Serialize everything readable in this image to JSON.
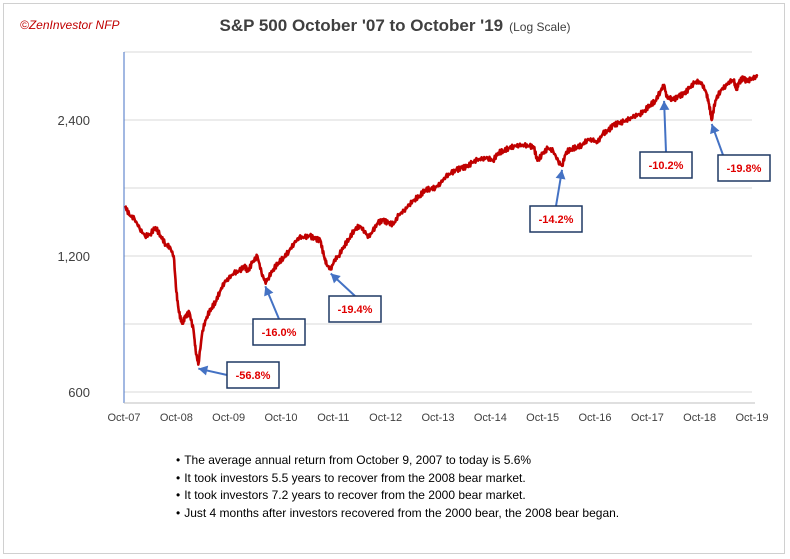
{
  "credit": "©ZenInvestor NFP",
  "title": "S&P 500  October '07 to October '19",
  "subtitle": "(Log Scale)",
  "notes": [
    "The average annual return from October 9, 2007 to today is 5.6%",
    "It took investors 5.5 years to recover from the 2008 bear market.",
    "It took investors 7.2 years to recover from the 2000 bear market.",
    "Just 4 months after investors recovered from the 2000 bear, the 2008 bear began."
  ],
  "colors": {
    "line": "#c00000",
    "grid": "#d9d9d9",
    "annotation_box": "#1f3864",
    "arrow": "#4472c4",
    "annotation_text": "#e00000"
  },
  "chart_data": {
    "type": "line",
    "title": "S&P 500  October '07 to October '19",
    "subtitle": "(Log Scale)",
    "y_scale": "log",
    "ylim": [
      600,
      3500
    ],
    "yticks": [
      600,
      1200,
      2400
    ],
    "ytick_labels": [
      "600",
      "1,200",
      "2,400"
    ],
    "xlim": [
      2007.77,
      2019.9
    ],
    "xticks": [
      2007.75,
      2008.75,
      2009.75,
      2010.75,
      2011.75,
      2012.75,
      2013.75,
      2014.75,
      2015.75,
      2016.75,
      2017.75,
      2018.75,
      2019.75
    ],
    "xtick_labels": [
      "Oct-07",
      "Oct-08",
      "Oct-09",
      "Oct-10",
      "Oct-11",
      "Oct-12",
      "Oct-13",
      "Oct-14",
      "Oct-15",
      "Oct-16",
      "Oct-17",
      "Oct-18",
      "Oct-19"
    ],
    "grid": true,
    "series": [
      {
        "x": [
          2007.77,
          2007.85,
          2007.95,
          2008.05,
          2008.15,
          2008.25,
          2008.35,
          2008.45,
          2008.55,
          2008.62,
          2008.7,
          2008.75,
          2008.8,
          2008.86,
          2008.92,
          2009.0,
          2009.08,
          2009.12,
          2009.17,
          2009.25,
          2009.33,
          2009.42,
          2009.5,
          2009.58,
          2009.67,
          2009.75,
          2009.85,
          2009.95,
          2010.05,
          2010.12,
          2010.2,
          2010.3,
          2010.38,
          2010.45,
          2010.5,
          2010.6,
          2010.7,
          2010.8,
          2010.9,
          2011.0,
          2011.1,
          2011.2,
          2011.3,
          2011.4,
          2011.5,
          2011.57,
          2011.62,
          2011.7,
          2011.78,
          2011.85,
          2011.95,
          2012.05,
          2012.15,
          2012.25,
          2012.35,
          2012.42,
          2012.5,
          2012.6,
          2012.7,
          2012.8,
          2012.9,
          2013.0,
          2013.1,
          2013.2,
          2013.3,
          2013.4,
          2013.5,
          2013.6,
          2013.7,
          2013.8,
          2013.9,
          2014.0,
          2014.1,
          2014.2,
          2014.3,
          2014.4,
          2014.5,
          2014.6,
          2014.7,
          2014.8,
          2014.9,
          2015.0,
          2015.1,
          2015.2,
          2015.3,
          2015.4,
          2015.5,
          2015.58,
          2015.65,
          2015.75,
          2015.85,
          2015.95,
          2016.05,
          2016.12,
          2016.2,
          2016.3,
          2016.4,
          2016.5,
          2016.6,
          2016.7,
          2016.8,
          2016.9,
          2017.0,
          2017.1,
          2017.2,
          2017.3,
          2017.4,
          2017.5,
          2017.6,
          2017.7,
          2017.8,
          2017.9,
          2018.0,
          2018.07,
          2018.12,
          2018.18,
          2018.25,
          2018.35,
          2018.45,
          2018.55,
          2018.65,
          2018.72,
          2018.8,
          2018.88,
          2018.93,
          2018.98,
          2019.05,
          2019.15,
          2019.25,
          2019.33,
          2019.4,
          2019.45,
          2019.5,
          2019.58,
          2019.65,
          2019.72,
          2019.8,
          2019.85
        ],
        "y": [
          1550,
          1480,
          1450,
          1380,
          1330,
          1340,
          1390,
          1330,
          1270,
          1260,
          1200,
          1000,
          900,
          850,
          880,
          900,
          820,
          740,
          690,
          820,
          880,
          920,
          950,
          1000,
          1050,
          1070,
          1100,
          1110,
          1140,
          1110,
          1160,
          1200,
          1100,
          1050,
          1070,
          1120,
          1160,
          1190,
          1230,
          1280,
          1320,
          1320,
          1330,
          1310,
          1300,
          1200,
          1150,
          1120,
          1180,
          1200,
          1260,
          1310,
          1370,
          1400,
          1360,
          1320,
          1360,
          1420,
          1440,
          1420,
          1410,
          1480,
          1510,
          1560,
          1600,
          1630,
          1680,
          1690,
          1700,
          1740,
          1800,
          1830,
          1860,
          1880,
          1890,
          1930,
          1960,
          1970,
          1980,
          1950,
          2030,
          2050,
          2080,
          2100,
          2110,
          2110,
          2100,
          2090,
          1950,
          2020,
          2080,
          2050,
          1940,
          1900,
          2040,
          2070,
          2090,
          2110,
          2170,
          2170,
          2140,
          2240,
          2270,
          2340,
          2360,
          2380,
          2410,
          2450,
          2470,
          2520,
          2590,
          2640,
          2780,
          2870,
          2700,
          2680,
          2660,
          2710,
          2740,
          2820,
          2900,
          2920,
          2880,
          2750,
          2600,
          2400,
          2650,
          2790,
          2860,
          2920,
          2940,
          2800,
          2900,
          2980,
          2920,
          2950,
          2980,
          3000
        ]
      }
    ],
    "annotations": [
      {
        "label": "-56.8%",
        "x": 2009.17,
        "y": 690
      },
      {
        "label": "-16.0%",
        "x": 2010.45,
        "y": 1050
      },
      {
        "label": "-19.4%",
        "x": 2011.7,
        "y": 1120
      },
      {
        "label": "-14.2%",
        "x": 2016.12,
        "y": 1900
      },
      {
        "label": "-10.2%",
        "x": 2018.07,
        "y": 2700
      },
      {
        "label": "-19.8%",
        "x": 2018.98,
        "y": 2400
      }
    ]
  }
}
